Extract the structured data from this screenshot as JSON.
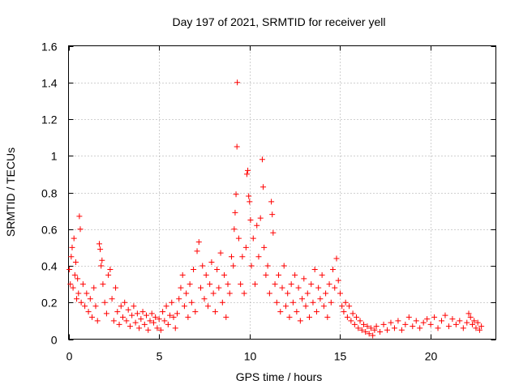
{
  "chart_data": {
    "type": "scatter",
    "title": "Day 197 of 2021, SRMTID for receiver yell",
    "xlabel": "GPS time / hours",
    "ylabel": "SRMTID / TECUs",
    "xlim": [
      0,
      23.6
    ],
    "ylim": [
      0,
      1.6
    ],
    "xticks": [
      0,
      5,
      10,
      15,
      20
    ],
    "xtick_labels": [
      "0",
      "5",
      "10",
      "15",
      "20"
    ],
    "yticks": [
      0,
      0.2,
      0.4,
      0.6,
      0.8,
      1.0,
      1.2,
      1.4,
      1.6
    ],
    "ytick_labels": [
      "0",
      "0.2",
      "0.4",
      "0.6",
      "0.8",
      "1",
      "1.2",
      "1.4",
      "1.6"
    ],
    "grid": true,
    "marker": "+",
    "marker_color": "#ff0000",
    "series": [
      {
        "name": "SRMTID",
        "points": [
          [
            0.05,
            0.38
          ],
          [
            0.1,
            0.3
          ],
          [
            0.15,
            0.45
          ],
          [
            0.2,
            0.5
          ],
          [
            0.25,
            0.28
          ],
          [
            0.3,
            0.55
          ],
          [
            0.35,
            0.35
          ],
          [
            0.4,
            0.42
          ],
          [
            0.45,
            0.22
          ],
          [
            0.5,
            0.33
          ],
          [
            0.55,
            0.25
          ],
          [
            0.6,
            0.67
          ],
          [
            0.65,
            0.6
          ],
          [
            0.7,
            0.2
          ],
          [
            0.8,
            0.3
          ],
          [
            0.9,
            0.18
          ],
          [
            1.0,
            0.25
          ],
          [
            1.1,
            0.15
          ],
          [
            1.2,
            0.22
          ],
          [
            1.3,
            0.12
          ],
          [
            1.4,
            0.28
          ],
          [
            1.5,
            0.18
          ],
          [
            1.6,
            0.1
          ],
          [
            1.7,
            0.52
          ],
          [
            1.75,
            0.49
          ],
          [
            1.8,
            0.4
          ],
          [
            1.85,
            0.43
          ],
          [
            1.9,
            0.3
          ],
          [
            2.0,
            0.2
          ],
          [
            2.1,
            0.14
          ],
          [
            2.2,
            0.35
          ],
          [
            2.3,
            0.38
          ],
          [
            2.4,
            0.22
          ],
          [
            2.5,
            0.1
          ],
          [
            2.6,
            0.28
          ],
          [
            2.7,
            0.15
          ],
          [
            2.8,
            0.08
          ],
          [
            2.9,
            0.18
          ],
          [
            3.0,
            0.12
          ],
          [
            3.1,
            0.2
          ],
          [
            3.2,
            0.1
          ],
          [
            3.3,
            0.16
          ],
          [
            3.4,
            0.07
          ],
          [
            3.5,
            0.13
          ],
          [
            3.6,
            0.18
          ],
          [
            3.7,
            0.09
          ],
          [
            3.8,
            0.14
          ],
          [
            3.9,
            0.06
          ],
          [
            4.0,
            0.11
          ],
          [
            4.1,
            0.15
          ],
          [
            4.2,
            0.08
          ],
          [
            4.3,
            0.13
          ],
          [
            4.4,
            0.05
          ],
          [
            4.5,
            0.1
          ],
          [
            4.6,
            0.14
          ],
          [
            4.7,
            0.09
          ],
          [
            4.8,
            0.12
          ],
          [
            4.9,
            0.06
          ],
          [
            5.0,
            0.11
          ],
          [
            5.1,
            0.05
          ],
          [
            5.2,
            0.15
          ],
          [
            5.3,
            0.1
          ],
          [
            5.4,
            0.18
          ],
          [
            5.5,
            0.08
          ],
          [
            5.6,
            0.13
          ],
          [
            5.7,
            0.2
          ],
          [
            5.8,
            0.12
          ],
          [
            5.9,
            0.06
          ],
          [
            6.0,
            0.14
          ],
          [
            6.1,
            0.22
          ],
          [
            6.2,
            0.28
          ],
          [
            6.3,
            0.35
          ],
          [
            6.4,
            0.18
          ],
          [
            6.5,
            0.25
          ],
          [
            6.6,
            0.12
          ],
          [
            6.7,
            0.3
          ],
          [
            6.8,
            0.2
          ],
          [
            6.9,
            0.38
          ],
          [
            7.0,
            0.15
          ],
          [
            7.1,
            0.48
          ],
          [
            7.2,
            0.53
          ],
          [
            7.3,
            0.28
          ],
          [
            7.4,
            0.4
          ],
          [
            7.5,
            0.22
          ],
          [
            7.6,
            0.35
          ],
          [
            7.7,
            0.18
          ],
          [
            7.8,
            0.3
          ],
          [
            7.9,
            0.42
          ],
          [
            8.0,
            0.25
          ],
          [
            8.1,
            0.15
          ],
          [
            8.2,
            0.38
          ],
          [
            8.3,
            0.28
          ],
          [
            8.4,
            0.47
          ],
          [
            8.5,
            0.2
          ],
          [
            8.6,
            0.35
          ],
          [
            8.7,
            0.12
          ],
          [
            8.8,
            0.3
          ],
          [
            8.9,
            0.25
          ],
          [
            9.0,
            0.45
          ],
          [
            9.1,
            0.4
          ],
          [
            9.15,
            0.6
          ],
          [
            9.2,
            0.69
          ],
          [
            9.25,
            0.79
          ],
          [
            9.3,
            1.05
          ],
          [
            9.32,
            1.4
          ],
          [
            9.4,
            0.55
          ],
          [
            9.5,
            0.3
          ],
          [
            9.6,
            0.45
          ],
          [
            9.7,
            0.25
          ],
          [
            9.8,
            0.5
          ],
          [
            9.85,
            0.9
          ],
          [
            9.9,
            0.92
          ],
          [
            9.95,
            0.78
          ],
          [
            10.0,
            0.75
          ],
          [
            10.05,
            0.65
          ],
          [
            10.1,
            0.4
          ],
          [
            10.2,
            0.55
          ],
          [
            10.3,
            0.3
          ],
          [
            10.4,
            0.62
          ],
          [
            10.5,
            0.45
          ],
          [
            10.6,
            0.66
          ],
          [
            10.7,
            0.98
          ],
          [
            10.75,
            0.83
          ],
          [
            10.8,
            0.5
          ],
          [
            10.9,
            0.35
          ],
          [
            11.0,
            0.4
          ],
          [
            11.1,
            0.25
          ],
          [
            11.2,
            0.75
          ],
          [
            11.25,
            0.68
          ],
          [
            11.3,
            0.58
          ],
          [
            11.4,
            0.3
          ],
          [
            11.5,
            0.2
          ],
          [
            11.6,
            0.35
          ],
          [
            11.7,
            0.15
          ],
          [
            11.8,
            0.28
          ],
          [
            11.9,
            0.4
          ],
          [
            12.0,
            0.18
          ],
          [
            12.1,
            0.25
          ],
          [
            12.2,
            0.12
          ],
          [
            12.3,
            0.3
          ],
          [
            12.4,
            0.2
          ],
          [
            12.5,
            0.35
          ],
          [
            12.6,
            0.15
          ],
          [
            12.7,
            0.28
          ],
          [
            12.8,
            0.1
          ],
          [
            12.9,
            0.22
          ],
          [
            13.0,
            0.33
          ],
          [
            13.1,
            0.18
          ],
          [
            13.2,
            0.25
          ],
          [
            13.3,
            0.12
          ],
          [
            13.4,
            0.3
          ],
          [
            13.5,
            0.2
          ],
          [
            13.6,
            0.38
          ],
          [
            13.7,
            0.15
          ],
          [
            13.8,
            0.28
          ],
          [
            13.9,
            0.22
          ],
          [
            14.0,
            0.35
          ],
          [
            14.1,
            0.18
          ],
          [
            14.2,
            0.25
          ],
          [
            14.3,
            0.12
          ],
          [
            14.4,
            0.3
          ],
          [
            14.5,
            0.2
          ],
          [
            14.6,
            0.38
          ],
          [
            14.7,
            0.28
          ],
          [
            14.8,
            0.44
          ],
          [
            14.9,
            0.32
          ],
          [
            15.0,
            0.25
          ],
          [
            15.1,
            0.18
          ],
          [
            15.2,
            0.15
          ],
          [
            15.3,
            0.2
          ],
          [
            15.4,
            0.12
          ],
          [
            15.5,
            0.18
          ],
          [
            15.6,
            0.1
          ],
          [
            15.7,
            0.14
          ],
          [
            15.8,
            0.08
          ],
          [
            15.9,
            0.12
          ],
          [
            16.0,
            0.06
          ],
          [
            16.1,
            0.1
          ],
          [
            16.2,
            0.05
          ],
          [
            16.3,
            0.08
          ],
          [
            16.4,
            0.04
          ],
          [
            16.5,
            0.07
          ],
          [
            16.6,
            0.03
          ],
          [
            16.7,
            0.06
          ],
          [
            16.8,
            0.02
          ],
          [
            16.9,
            0.05
          ],
          [
            17.0,
            0.07
          ],
          [
            17.2,
            0.04
          ],
          [
            17.4,
            0.08
          ],
          [
            17.6,
            0.05
          ],
          [
            17.8,
            0.09
          ],
          [
            18.0,
            0.06
          ],
          [
            18.2,
            0.1
          ],
          [
            18.4,
            0.05
          ],
          [
            18.6,
            0.08
          ],
          [
            18.8,
            0.12
          ],
          [
            19.0,
            0.07
          ],
          [
            19.2,
            0.1
          ],
          [
            19.4,
            0.06
          ],
          [
            19.6,
            0.09
          ],
          [
            19.8,
            0.11
          ],
          [
            20.0,
            0.08
          ],
          [
            20.2,
            0.12
          ],
          [
            20.4,
            0.06
          ],
          [
            20.6,
            0.1
          ],
          [
            20.8,
            0.13
          ],
          [
            21.0,
            0.07
          ],
          [
            21.2,
            0.11
          ],
          [
            21.4,
            0.08
          ],
          [
            21.6,
            0.1
          ],
          [
            21.8,
            0.06
          ],
          [
            22.0,
            0.09
          ],
          [
            22.1,
            0.14
          ],
          [
            22.2,
            0.12
          ],
          [
            22.3,
            0.08
          ],
          [
            22.4,
            0.1
          ],
          [
            22.5,
            0.06
          ],
          [
            22.6,
            0.09
          ],
          [
            22.7,
            0.05
          ],
          [
            22.8,
            0.07
          ]
        ]
      }
    ]
  }
}
